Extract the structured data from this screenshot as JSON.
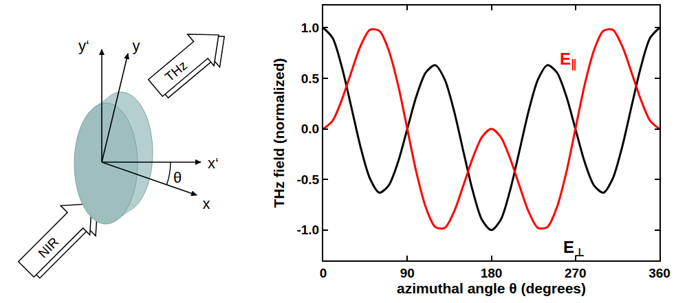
{
  "chart_data": {
    "type": "line",
    "xlabel": "azimuthal angle θ (degrees)",
    "ylabel": "THz field (normalized)",
    "x": [
      0,
      10,
      20,
      30,
      40,
      50,
      60,
      70,
      80,
      90,
      100,
      110,
      120,
      130,
      140,
      150,
      160,
      170,
      180,
      190,
      200,
      210,
      220,
      230,
      240,
      250,
      260,
      270,
      280,
      290,
      300,
      310,
      320,
      330,
      340,
      350,
      360
    ],
    "series": [
      {
        "name": "E⊥",
        "color": "#000000",
        "values": [
          1,
          0.9,
          0.61,
          0.22,
          -0.18,
          -0.49,
          -0.63,
          -0.56,
          -0.33,
          0,
          0.33,
          0.56,
          0.63,
          0.49,
          0.18,
          -0.22,
          -0.61,
          -0.9,
          -1,
          -0.9,
          -0.61,
          -0.22,
          0.18,
          0.49,
          0.63,
          0.56,
          0.33,
          0,
          -0.33,
          -0.56,
          -0.63,
          -0.49,
          -0.18,
          0.22,
          0.61,
          0.9,
          1
        ]
      },
      {
        "name": "E∥",
        "color": "#ff0000",
        "values": [
          0,
          0.08,
          0.29,
          0.56,
          0.82,
          0.98,
          0.97,
          0.78,
          0.44,
          0,
          -0.44,
          -0.78,
          -0.97,
          -0.98,
          -0.82,
          -0.56,
          -0.29,
          -0.08,
          0,
          -0.08,
          -0.29,
          -0.56,
          -0.82,
          -0.98,
          -0.97,
          -0.78,
          -0.44,
          0,
          0.44,
          0.78,
          0.97,
          0.98,
          0.82,
          0.56,
          0.29,
          0.08,
          0
        ]
      }
    ],
    "xlim": [
      0,
      360
    ],
    "ylim": [
      -1.3,
      1.22
    ],
    "xticks": [
      0,
      90,
      180,
      270,
      360
    ],
    "yticks": [
      {
        "value": -1,
        "label": "-1.0"
      },
      {
        "value": -0.5,
        "label": "-0.5"
      },
      {
        "value": 0,
        "label": "0.0"
      },
      {
        "value": 0.5,
        "label": "0.5"
      },
      {
        "value": 1,
        "label": "1.0"
      }
    ],
    "grid": false,
    "annotations": [
      {
        "text": "E∥",
        "x": 262,
        "y": 0.68
      },
      {
        "text": "E⊥",
        "x": 268,
        "y": -1.18
      }
    ]
  },
  "diagram": {
    "axis_labels": {
      "x": "x",
      "y": "y",
      "x_rotated": "x‘",
      "y_rotated": "y‘"
    },
    "angle": "θ",
    "beams": {
      "in": "NIR",
      "out": "THz"
    }
  }
}
